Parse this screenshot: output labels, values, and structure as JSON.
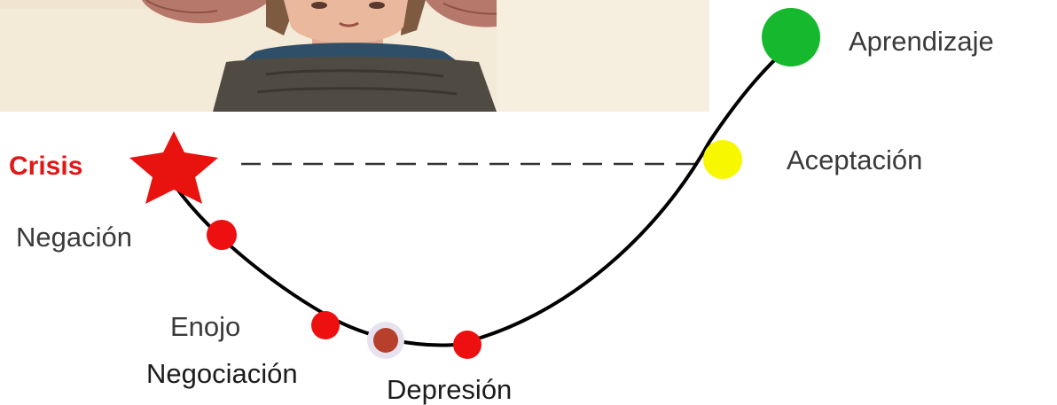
{
  "photo": {
    "icon": "child-holding-head-illustration"
  },
  "stages": {
    "crisis": "Crisis",
    "negacion": "Negación",
    "enojo": "Enojo",
    "negociacion": "Negociación",
    "depresion": "Depresión",
    "aceptacion": "Aceptación",
    "aprendizaje": "Aprendizaje"
  },
  "colors": {
    "crisis": "#e8120f",
    "red_stage": "#ee1010",
    "negotiation": "#b6402c",
    "acceptance": "#f7f700",
    "learning": "#16b82e",
    "curve": "#000000",
    "dashed": "#333333"
  }
}
